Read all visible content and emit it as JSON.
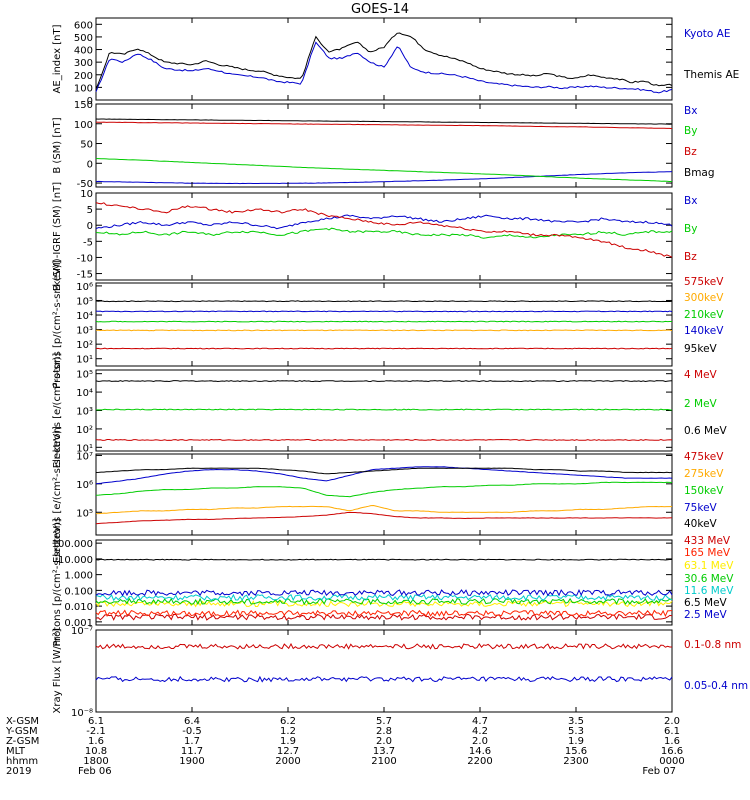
{
  "title": "GOES-14",
  "chart_data": [
    {
      "type": "line",
      "ylabel": "AE_index [nT]",
      "ylim": [
        0,
        650
      ],
      "yticks": [
        "0",
        "100",
        "200",
        "300",
        "400",
        "500",
        "600"
      ],
      "series": [
        {
          "name": "Kyoto AE",
          "color": "#0000cc",
          "values": [
            60,
            330,
            300,
            370,
            320,
            250,
            240,
            230,
            250,
            230,
            200,
            190,
            180,
            150,
            140,
            130,
            460,
            330,
            330,
            380,
            300,
            260,
            430,
            250,
            220,
            210,
            200,
            180,
            150,
            130,
            120,
            110,
            100,
            105,
            95,
            100,
            110,
            100,
            95,
            90,
            80,
            60,
            80
          ]
        },
        {
          "name": "Themis AE",
          "color": "#000000",
          "values": [
            80,
            380,
            360,
            410,
            360,
            300,
            290,
            280,
            310,
            280,
            260,
            240,
            230,
            200,
            180,
            170,
            500,
            380,
            410,
            460,
            380,
            420,
            540,
            500,
            400,
            360,
            330,
            300,
            250,
            230,
            210,
            200,
            190,
            210,
            180,
            170,
            200,
            180,
            170,
            140,
            150,
            110,
            120
          ]
        }
      ]
    },
    {
      "type": "line",
      "ylabel": "B (SM) [nT]",
      "ylim": [
        -60,
        150
      ],
      "yticks": [
        "-50",
        "0",
        "50",
        "100",
        "150"
      ],
      "series": [
        {
          "name": "Bx",
          "color": "#0000cc",
          "values": [
            -46,
            -48,
            -50,
            -51,
            -51,
            -50,
            -48,
            -45,
            -42,
            -38,
            -33,
            -28,
            -24,
            -21
          ]
        },
        {
          "name": "By",
          "color": "#00cc00",
          "values": [
            12,
            8,
            3,
            -2,
            -7,
            -12,
            -16,
            -20,
            -24,
            -28,
            -33,
            -38,
            -42,
            -46
          ]
        },
        {
          "name": "Bz",
          "color": "#cc0000",
          "values": [
            104,
            103,
            102,
            101,
            100,
            99,
            98,
            97,
            96,
            95,
            93,
            92,
            90,
            88
          ]
        },
        {
          "name": "Bmag",
          "color": "#000000",
          "values": [
            112,
            111,
            110,
            109,
            108,
            107,
            106,
            105,
            104,
            103,
            102,
            101,
            100,
            99
          ]
        }
      ]
    },
    {
      "type": "line",
      "ylabel": "B (SM)-IGRF (SM) [nT]",
      "ylim": [
        -17,
        10
      ],
      "yticks": [
        "-15",
        "-10",
        "-5",
        "0",
        "5",
        "10"
      ],
      "series": [
        {
          "name": "Bx",
          "color": "#0000cc",
          "values": [
            -1,
            0,
            1,
            0,
            1,
            0,
            1,
            0,
            -1,
            1,
            2,
            3,
            2,
            3,
            2,
            1,
            2,
            3,
            2,
            2,
            1,
            1,
            2,
            1,
            1,
            0
          ]
        },
        {
          "name": "By",
          "color": "#00cc00",
          "values": [
            -2,
            -3,
            -2,
            -3,
            -2,
            -3,
            -2,
            -2,
            -3,
            -2,
            -1,
            -2,
            -2,
            -2,
            -3,
            -3,
            -3,
            -4,
            -3,
            -4,
            -3,
            -3,
            -2,
            -3,
            -2,
            -2
          ]
        },
        {
          "name": "Bz",
          "color": "#cc0000",
          "values": [
            7,
            6,
            5,
            4,
            6,
            5,
            4,
            5,
            4,
            5,
            3,
            2,
            1,
            0,
            1,
            0,
            -1,
            -2,
            -2,
            -3,
            -3,
            -4,
            -5,
            -7,
            -8,
            -10
          ]
        }
      ]
    },
    {
      "type": "line",
      "ylabel": "Protons [p/(cm²-s-sr-keV)]",
      "yscale": "log",
      "ylim_log10": [
        0.5,
        6.2
      ],
      "yticks": [
        "10¹",
        "10²",
        "10³",
        "10⁴",
        "10⁵",
        "10⁶"
      ],
      "series": [
        {
          "name": "575keV",
          "color": "#cc0000",
          "log10": 1.7
        },
        {
          "name": "300keV",
          "color": "#ffaa00",
          "log10": 2.95
        },
        {
          "name": "210keV",
          "color": "#00cc00",
          "log10": 3.55
        },
        {
          "name": "140keV",
          "color": "#0000cc",
          "log10": 4.25
        },
        {
          "name": "95keV",
          "color": "#000000",
          "log10": 4.95
        }
      ]
    },
    {
      "type": "line",
      "ylabel": "Electrons [e/(cm²-s-sr)]",
      "yscale": "log",
      "ylim_log10": [
        0.8,
        5.2
      ],
      "yticks": [
        "10¹",
        "10²",
        "10³",
        "10⁴",
        "10⁵"
      ],
      "series": [
        {
          "name": "4 MeV",
          "color": "#cc0000",
          "log10": 1.4
        },
        {
          "name": "2 MeV",
          "color": "#00cc00",
          "log10": 3.05
        },
        {
          "name": "0.6 MeV",
          "color": "#000000",
          "log10": 4.6
        }
      ]
    },
    {
      "type": "line",
      "ylabel": "Electrons [e/(cm²-s-sr-keV)]",
      "yscale": "log",
      "ylim_log10": [
        4.2,
        7.05
      ],
      "yticks": [
        "10⁵",
        "10⁶",
        "10⁷"
      ],
      "series": [
        {
          "name": "475keV",
          "color": "#cc0000",
          "values": [
            4.6,
            4.65,
            4.7,
            4.72,
            4.75,
            4.75,
            4.78,
            4.8,
            4.82,
            4.85,
            4.9,
            5.0,
            4.95,
            4.85,
            4.8,
            4.8,
            4.78,
            4.8,
            4.8,
            4.8,
            4.8,
            4.8,
            4.8,
            4.8,
            4.8,
            4.8
          ]
        },
        {
          "name": "275keV",
          "color": "#ffaa00",
          "values": [
            4.95,
            5.0,
            5.05,
            5.05,
            5.1,
            5.1,
            5.15,
            5.15,
            5.2,
            5.2,
            5.2,
            5.05,
            5.25,
            5.05,
            5.05,
            5.0,
            5.0,
            5.0,
            5.0,
            5.05,
            5.05,
            5.1,
            5.1,
            5.15,
            5.2,
            5.2
          ]
        },
        {
          "name": "150keV",
          "color": "#00cc00",
          "values": [
            5.6,
            5.65,
            5.75,
            5.8,
            5.8,
            5.85,
            5.85,
            5.9,
            5.9,
            5.85,
            5.6,
            5.55,
            5.7,
            5.8,
            5.85,
            5.9,
            5.9,
            5.95,
            5.95,
            6.0,
            6.0,
            6.0,
            6.05,
            6.05,
            6.05,
            6.05
          ]
        },
        {
          "name": "75keV",
          "color": "#0000cc",
          "values": [
            6.0,
            6.1,
            6.2,
            6.35,
            6.45,
            6.5,
            6.5,
            6.45,
            6.35,
            6.2,
            6.1,
            6.3,
            6.5,
            6.55,
            6.6,
            6.6,
            6.55,
            6.5,
            6.45,
            6.4,
            6.35,
            6.3,
            6.25,
            6.2,
            6.2,
            6.2
          ]
        },
        {
          "name": "40keV",
          "color": "#000000",
          "values": [
            6.4,
            6.45,
            6.5,
            6.5,
            6.55,
            6.55,
            6.55,
            6.55,
            6.5,
            6.45,
            6.35,
            6.4,
            6.45,
            6.5,
            6.55,
            6.55,
            6.55,
            6.55,
            6.55,
            6.5,
            6.5,
            6.45,
            6.45,
            6.4,
            6.4,
            6.4
          ]
        }
      ]
    },
    {
      "type": "line",
      "ylabel": "Protons [p/(cm²-s-sr-keV)]",
      "yscale": "log",
      "ylim_log10": [
        -3.2,
        2.2
      ],
      "yticks": [
        "0.001",
        "0.010",
        "0.100",
        "1.000",
        "10.000",
        "100.000"
      ],
      "series": [
        {
          "name": "433 MeV",
          "color": "#cc0000",
          "log10": -2.7
        },
        {
          "name": "165 MeV",
          "color": "#ff2200",
          "log10": -2.45
        },
        {
          "name": "63.1 MeV",
          "color": "#ffee00",
          "log10": -1.85
        },
        {
          "name": "30.6 MeV",
          "color": "#00cc00",
          "log10": -1.7
        },
        {
          "name": "11.6 MeV",
          "color": "#00cccc",
          "log10": -1.45
        },
        {
          "name": "6.5 MeV",
          "color": "#000000",
          "log10": 0.95
        },
        {
          "name": "2.5 MeV",
          "color": "#0000cc",
          "log10": -1.15
        }
      ]
    },
    {
      "type": "line",
      "ylabel": "Xray Flux [W/m²]",
      "yscale": "log",
      "ylim_log10": [
        -8,
        -7
      ],
      "yticks": [
        "10⁻⁸",
        "10⁻⁷"
      ],
      "series": [
        {
          "name": "0.1-0.8 nm",
          "color": "#cc0000",
          "log10": -7.2
        },
        {
          "name": "0.05-0.4 nm",
          "color": "#0000cc",
          "log10": -7.6
        }
      ]
    }
  ],
  "xaxis": {
    "row_labels": [
      "X-GSM",
      "Y-GSM",
      "Z-GSM",
      "MLT",
      "hhmm",
      "2019"
    ],
    "columns": [
      {
        "values": [
          "6.1",
          "-2.1",
          "1.6",
          "10.8",
          "1800",
          "Feb 06"
        ]
      },
      {
        "values": [
          "6.4",
          "-0.5",
          "1.7",
          "11.7",
          "1900",
          ""
        ]
      },
      {
        "values": [
          "6.2",
          "1.2",
          "1.9",
          "12.7",
          "2000",
          ""
        ]
      },
      {
        "values": [
          "5.7",
          "2.8",
          "2.0",
          "13.7",
          "2100",
          ""
        ]
      },
      {
        "values": [
          "4.7",
          "4.2",
          "2.0",
          "14.6",
          "2200",
          ""
        ]
      },
      {
        "values": [
          "3.5",
          "5.3",
          "1.9",
          "15.6",
          "2300",
          ""
        ]
      },
      {
        "values": [
          "2.0",
          "6.1",
          "1.6",
          "16.6",
          "0000",
          "Feb 07"
        ]
      }
    ]
  }
}
